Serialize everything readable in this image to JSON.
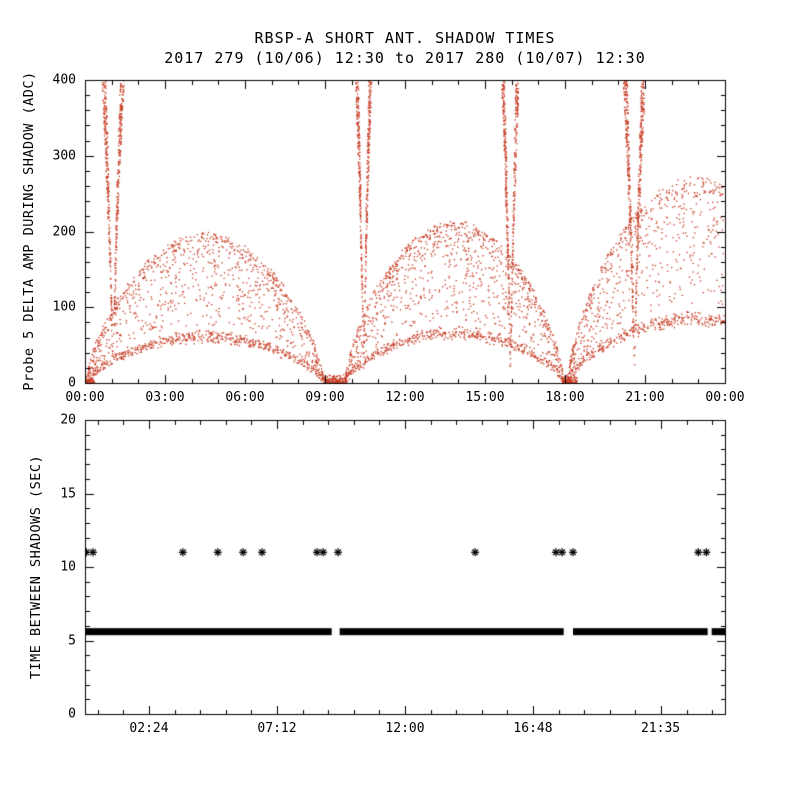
{
  "title": "RBSP-A SHORT ANT. SHADOW TIMES",
  "subtitle": "2017 279 (10/06) 12:30 to 2017 280 (10/07) 12:30",
  "colors": {
    "background": "#ffffff",
    "axis": "#000000",
    "text": "#000000",
    "scatter_red": "#c73a22",
    "marker_black": "#000000"
  },
  "chart_data": [
    {
      "type": "scatter",
      "panel": "top",
      "title": "RBSP-A SHORT ANT. SHADOW TIMES",
      "subtitle": "2017 279 (10/06) 12:30 to 2017 280 (10/07) 12:30",
      "ylabel": "Probe 5 DELTA AMP DURING SHADOW (ADC)",
      "xlabel": "",
      "xlim": [
        0,
        24
      ],
      "ylim": [
        0,
        400
      ],
      "grid": false,
      "xticks": {
        "hours": [
          0,
          3,
          6,
          9,
          12,
          15,
          18,
          21,
          24
        ],
        "labels": [
          "00:00",
          "03:00",
          "06:00",
          "09:00",
          "12:00",
          "15:00",
          "18:00",
          "21:00",
          "00:00"
        ]
      },
      "yticks": {
        "values": [
          0,
          100,
          200,
          300,
          400
        ],
        "labels": [
          "0",
          "100",
          "200",
          "300",
          "400"
        ]
      },
      "x_minor": {
        "start": 0,
        "step": 1
      },
      "y_minor": {
        "start": 0,
        "step": 20
      },
      "point_color": "#c73a22",
      "description": "Dense red scatter of per-shadow delta amplitude vs time of day: three dome-shaped clouds (peaks ~185 ADC near 04:12, ~200 ADC near 13:54, ~250 ADC near 23:00) separated by narrow funnels of points diverging to the 400-ADC top near 01:00, 10:27, 15:57 and 20:36, converging to 0 near 00:00, 09:00-09:45 and 18:00.",
      "model": {
        "domes": [
          {
            "t0": 0.05,
            "t1": 8.95,
            "t_env_end": 8.95,
            "peak": 185,
            "n": 1500
          },
          {
            "t0": 9.75,
            "t1": 17.95,
            "t_env_end": 17.95,
            "peak": 200,
            "n": 1500
          },
          {
            "t0": 18.1,
            "t1": 24.0,
            "t_env_end": 27.6,
            "peak": 255,
            "n": 1000
          }
        ],
        "spikes": [
          {
            "tc": 1.05,
            "w": 0.38,
            "n": 520
          },
          {
            "tc": 10.45,
            "w": 0.28,
            "n": 470
          },
          {
            "tc": 15.95,
            "w": 0.3,
            "n": 460
          },
          {
            "tc": 20.6,
            "w": 0.38,
            "n": 520
          }
        ],
        "floors": [
          {
            "t0": 0.0,
            "t1": 0.35,
            "ymax": 10,
            "n": 70
          },
          {
            "t0": 8.95,
            "t1": 9.8,
            "ymax": 14,
            "n": 170
          },
          {
            "t0": 17.9,
            "t1": 18.45,
            "ymax": 12,
            "n": 110
          }
        ]
      }
    },
    {
      "type": "scatter",
      "panel": "bottom",
      "ylabel": "TIME BETWEEN SHADOWS (SEC)",
      "xlabel": "",
      "xlim": [
        0,
        24
      ],
      "ylim": [
        0,
        20
      ],
      "grid": false,
      "xticks": {
        "hours": [
          2.4,
          7.2,
          12.0,
          16.8,
          21.5833
        ],
        "labels": [
          "02:24",
          "07:12",
          "12:00",
          "16:48",
          "21:35"
        ]
      },
      "yticks": {
        "values": [
          0,
          5,
          10,
          15,
          20
        ],
        "labels": [
          "0",
          "5",
          "10",
          "15",
          "20"
        ]
      },
      "x_minor": {
        "start": 0.48,
        "step": 0.96
      },
      "y_minor": {
        "start": 0,
        "step": 1
      },
      "band": {
        "value": 5.6,
        "segments": [
          [
            0.0,
            9.25
          ],
          [
            9.55,
            17.95
          ],
          [
            18.3,
            23.35
          ],
          [
            23.5,
            24.0
          ]
        ],
        "note": "thick black band of points at ~5.6 s spanning the day with gaps near 09:25 and 18:00"
      },
      "asterisks": {
        "value": 11,
        "hours": [
          0.05,
          0.3,
          3.67,
          4.98,
          5.93,
          6.64,
          8.7,
          8.93,
          9.49,
          14.63,
          17.66,
          17.89,
          18.3,
          23.0,
          23.3
        ],
        "note": "isolated asterisk markers at ~11 s"
      }
    }
  ]
}
